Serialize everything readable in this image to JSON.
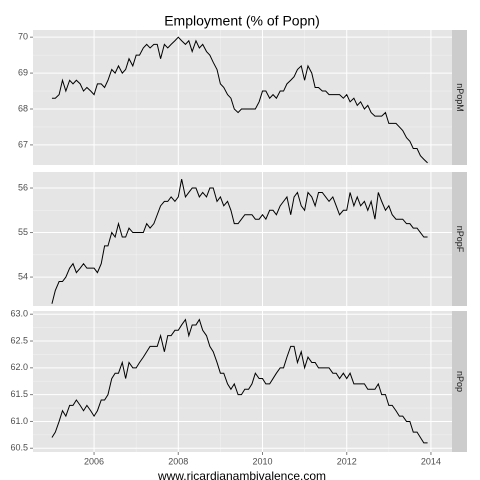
{
  "chart_data": [
    {
      "type": "line",
      "title": "Employment (% of Popn)",
      "strip": "nPopM",
      "color": "#000000",
      "grid": true,
      "xlim": [
        2004.55,
        2014.5
      ],
      "xticks": [
        2006,
        2008,
        2010,
        2012,
        2014
      ],
      "ylim": [
        66.44,
        70.2
      ],
      "yticks": [
        67,
        68,
        69,
        70
      ],
      "x": [
        2005,
        2005.08,
        2005.17,
        2005.25,
        2005.33,
        2005.42,
        2005.5,
        2005.58,
        2005.67,
        2005.75,
        2005.83,
        2005.92,
        2006,
        2006.08,
        2006.17,
        2006.25,
        2006.33,
        2006.42,
        2006.5,
        2006.58,
        2006.67,
        2006.75,
        2006.83,
        2006.92,
        2007,
        2007.08,
        2007.17,
        2007.25,
        2007.33,
        2007.42,
        2007.5,
        2007.58,
        2007.67,
        2007.75,
        2007.83,
        2007.92,
        2008,
        2008.08,
        2008.17,
        2008.25,
        2008.33,
        2008.42,
        2008.5,
        2008.58,
        2008.67,
        2008.75,
        2008.83,
        2008.92,
        2009,
        2009.08,
        2009.17,
        2009.25,
        2009.33,
        2009.42,
        2009.5,
        2009.58,
        2009.67,
        2009.75,
        2009.83,
        2009.92,
        2010,
        2010.08,
        2010.17,
        2010.25,
        2010.33,
        2010.42,
        2010.5,
        2010.58,
        2010.67,
        2010.75,
        2010.83,
        2010.92,
        2011,
        2011.08,
        2011.17,
        2011.25,
        2011.33,
        2011.42,
        2011.5,
        2011.58,
        2011.67,
        2011.75,
        2011.83,
        2011.92,
        2012,
        2012.08,
        2012.17,
        2012.25,
        2012.33,
        2012.42,
        2012.5,
        2012.58,
        2012.67,
        2012.75,
        2012.83,
        2012.92,
        2013,
        2013.08,
        2013.17,
        2013.25,
        2013.33,
        2013.42,
        2013.5,
        2013.58,
        2013.67,
        2013.75,
        2013.83,
        2013.92
      ],
      "values": [
        68.3,
        68.3,
        68.4,
        68.8,
        68.5,
        68.8,
        68.7,
        68.8,
        68.7,
        68.5,
        68.6,
        68.5,
        68.4,
        68.7,
        68.7,
        68.6,
        68.8,
        69.1,
        69.0,
        69.2,
        69.0,
        69.1,
        69.4,
        69.2,
        69.5,
        69.5,
        69.7,
        69.8,
        69.7,
        69.8,
        69.8,
        69.4,
        69.8,
        69.7,
        69.8,
        69.9,
        70.0,
        69.9,
        69.8,
        69.9,
        69.6,
        69.9,
        69.7,
        69.8,
        69.6,
        69.5,
        69.3,
        69.1,
        68.7,
        68.6,
        68.4,
        68.3,
        68.0,
        67.9,
        68.0,
        68.0,
        68.0,
        68.0,
        68.0,
        68.2,
        68.5,
        68.5,
        68.3,
        68.4,
        68.3,
        68.5,
        68.5,
        68.7,
        68.8,
        68.9,
        69.1,
        69.2,
        68.8,
        69.2,
        69.0,
        68.6,
        68.6,
        68.5,
        68.5,
        68.4,
        68.4,
        68.4,
        68.4,
        68.3,
        68.4,
        68.2,
        68.3,
        68.1,
        68.2,
        68.0,
        68.1,
        67.9,
        67.8,
        67.8,
        67.8,
        67.9,
        67.6,
        67.6,
        67.6,
        67.5,
        67.4,
        67.2,
        67.1,
        66.9,
        66.9,
        66.7,
        66.6,
        66.5
      ]
    },
    {
      "type": "line",
      "strip": "nPopF",
      "color": "#000000",
      "grid": true,
      "xlim": [
        2004.55,
        2014.5
      ],
      "xticks": [
        2006,
        2008,
        2010,
        2012,
        2014
      ],
      "ylim": [
        53.35,
        56.36
      ],
      "yticks": [
        54,
        55,
        56
      ],
      "x": [
        2005,
        2005.08,
        2005.17,
        2005.25,
        2005.33,
        2005.42,
        2005.5,
        2005.58,
        2005.67,
        2005.75,
        2005.83,
        2005.92,
        2006,
        2006.08,
        2006.17,
        2006.25,
        2006.33,
        2006.42,
        2006.5,
        2006.58,
        2006.67,
        2006.75,
        2006.83,
        2006.92,
        2007,
        2007.08,
        2007.17,
        2007.25,
        2007.33,
        2007.42,
        2007.5,
        2007.58,
        2007.67,
        2007.75,
        2007.83,
        2007.92,
        2008,
        2008.08,
        2008.17,
        2008.25,
        2008.33,
        2008.42,
        2008.5,
        2008.58,
        2008.67,
        2008.75,
        2008.83,
        2008.92,
        2009,
        2009.08,
        2009.17,
        2009.25,
        2009.33,
        2009.42,
        2009.5,
        2009.58,
        2009.67,
        2009.75,
        2009.83,
        2009.92,
        2010,
        2010.08,
        2010.17,
        2010.25,
        2010.33,
        2010.42,
        2010.5,
        2010.58,
        2010.67,
        2010.75,
        2010.83,
        2010.92,
        2011,
        2011.08,
        2011.17,
        2011.25,
        2011.33,
        2011.42,
        2011.5,
        2011.58,
        2011.67,
        2011.75,
        2011.83,
        2011.92,
        2012,
        2012.08,
        2012.17,
        2012.25,
        2012.33,
        2012.42,
        2012.5,
        2012.58,
        2012.67,
        2012.75,
        2012.83,
        2012.92,
        2013,
        2013.08,
        2013.17,
        2013.25,
        2013.33,
        2013.42,
        2013.5,
        2013.58,
        2013.67,
        2013.75,
        2013.83,
        2013.92
      ],
      "values": [
        53.4,
        53.7,
        53.9,
        53.9,
        54.0,
        54.2,
        54.3,
        54.1,
        54.2,
        54.3,
        54.2,
        54.2,
        54.2,
        54.1,
        54.3,
        54.7,
        54.7,
        55.0,
        54.9,
        55.2,
        54.9,
        54.9,
        55.1,
        55.0,
        55.0,
        55.0,
        55.0,
        55.2,
        55.1,
        55.2,
        55.4,
        55.6,
        55.7,
        55.7,
        55.8,
        55.7,
        55.8,
        56.2,
        55.8,
        55.9,
        56.0,
        56.0,
        55.8,
        55.9,
        55.8,
        56.0,
        56.0,
        55.7,
        55.8,
        55.6,
        55.7,
        55.5,
        55.2,
        55.2,
        55.3,
        55.4,
        55.4,
        55.4,
        55.3,
        55.3,
        55.4,
        55.3,
        55.5,
        55.5,
        55.4,
        55.6,
        55.7,
        55.8,
        55.4,
        55.8,
        55.9,
        55.6,
        55.5,
        55.9,
        55.8,
        55.6,
        55.9,
        55.9,
        55.8,
        55.7,
        55.8,
        55.6,
        55.4,
        55.5,
        55.5,
        55.9,
        55.6,
        55.8,
        55.6,
        55.7,
        55.5,
        55.7,
        55.3,
        55.9,
        55.7,
        55.5,
        55.6,
        55.4,
        55.3,
        55.3,
        55.3,
        55.2,
        55.2,
        55.1,
        55.1,
        55.0,
        54.9,
        54.9
      ]
    },
    {
      "type": "line",
      "strip": "nPop",
      "color": "#000000",
      "grid": true,
      "xlabel": "www.ricardianambivalence.com",
      "xlim": [
        2004.55,
        2014.5
      ],
      "xticks": [
        2006,
        2008,
        2010,
        2012,
        2014
      ],
      "ylim": [
        60.43,
        63.06
      ],
      "yticks": [
        60.5,
        {
          "value": 61,
          "label": "61.0"
        },
        61.5,
        {
          "value": 62,
          "label": "62.0"
        },
        62.5,
        {
          "value": 63,
          "label": "63.0"
        }
      ],
      "x": [
        2005,
        2005.08,
        2005.17,
        2005.25,
        2005.33,
        2005.42,
        2005.5,
        2005.58,
        2005.67,
        2005.75,
        2005.83,
        2005.92,
        2006,
        2006.08,
        2006.17,
        2006.25,
        2006.33,
        2006.42,
        2006.5,
        2006.58,
        2006.67,
        2006.75,
        2006.83,
        2006.92,
        2007,
        2007.08,
        2007.17,
        2007.25,
        2007.33,
        2007.42,
        2007.5,
        2007.58,
        2007.67,
        2007.75,
        2007.83,
        2007.92,
        2008,
        2008.08,
        2008.17,
        2008.25,
        2008.33,
        2008.42,
        2008.5,
        2008.58,
        2008.67,
        2008.75,
        2008.83,
        2008.92,
        2009,
        2009.08,
        2009.17,
        2009.25,
        2009.33,
        2009.42,
        2009.5,
        2009.58,
        2009.67,
        2009.75,
        2009.83,
        2009.92,
        2010,
        2010.08,
        2010.17,
        2010.25,
        2010.33,
        2010.42,
        2010.5,
        2010.58,
        2010.67,
        2010.75,
        2010.83,
        2010.92,
        2011,
        2011.08,
        2011.17,
        2011.25,
        2011.33,
        2011.42,
        2011.5,
        2011.58,
        2011.67,
        2011.75,
        2011.83,
        2011.92,
        2012,
        2012.08,
        2012.17,
        2012.25,
        2012.33,
        2012.42,
        2012.5,
        2012.58,
        2012.67,
        2012.75,
        2012.83,
        2012.92,
        2013,
        2013.08,
        2013.17,
        2013.25,
        2013.33,
        2013.42,
        2013.5,
        2013.58,
        2013.67,
        2013.75,
        2013.83,
        2013.92
      ],
      "values": [
        60.7,
        60.8,
        61.0,
        61.2,
        61.1,
        61.3,
        61.3,
        61.4,
        61.3,
        61.2,
        61.3,
        61.2,
        61.1,
        61.2,
        61.4,
        61.4,
        61.5,
        61.8,
        61.9,
        61.9,
        62.1,
        61.8,
        62.1,
        62.0,
        62.0,
        62.1,
        62.2,
        62.3,
        62.4,
        62.4,
        62.4,
        62.6,
        62.3,
        62.6,
        62.6,
        62.7,
        62.7,
        62.8,
        62.9,
        62.6,
        62.8,
        62.8,
        62.9,
        62.7,
        62.6,
        62.4,
        62.3,
        62.1,
        61.9,
        61.9,
        61.7,
        61.6,
        61.7,
        61.5,
        61.5,
        61.6,
        61.6,
        61.7,
        61.9,
        61.8,
        61.8,
        61.7,
        61.7,
        61.8,
        61.9,
        62.0,
        62.0,
        62.2,
        62.4,
        62.4,
        62.1,
        62.3,
        62.0,
        62.2,
        62.1,
        62.1,
        62.0,
        62.0,
        62.0,
        62.0,
        61.9,
        61.9,
        61.8,
        61.9,
        61.8,
        61.9,
        61.7,
        61.7,
        61.7,
        61.7,
        61.6,
        61.6,
        61.6,
        61.7,
        61.5,
        61.5,
        61.3,
        61.3,
        61.2,
        61.1,
        61.1,
        61.0,
        61.0,
        60.8,
        60.8,
        60.7,
        60.6,
        60.6
      ]
    }
  ]
}
